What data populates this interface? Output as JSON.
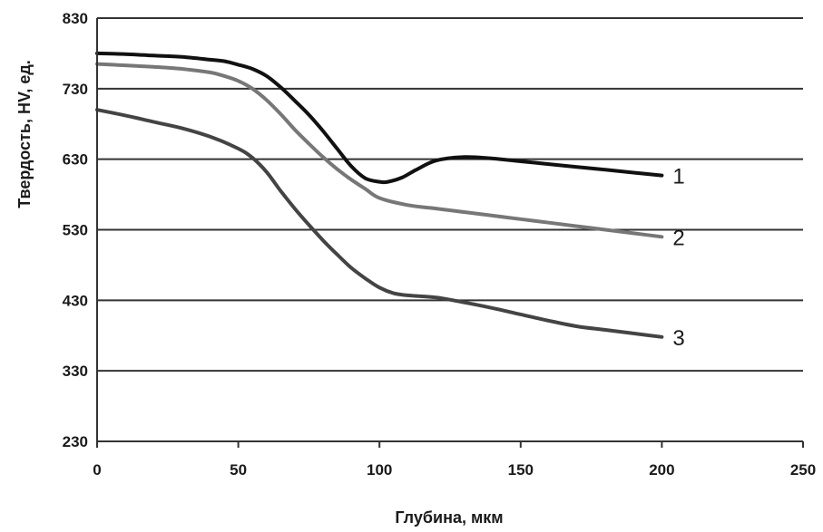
{
  "chart_data": {
    "type": "line",
    "xlabel": "Глубина, мкм",
    "ylabel": "Твердость, HV, ед.",
    "xlim": [
      0,
      250
    ],
    "ylim": [
      230,
      830
    ],
    "xticks": [
      "0",
      "50",
      "100",
      "150",
      "200",
      "250"
    ],
    "yticks": [
      "230",
      "330",
      "430",
      "530",
      "630",
      "730",
      "830"
    ],
    "grid": "horizontal",
    "series": [
      {
        "name": "1",
        "color": "#111111",
        "x": [
          0,
          10,
          20,
          30,
          40,
          45,
          50,
          55,
          60,
          65,
          70,
          75,
          80,
          85,
          90,
          95,
          100,
          103,
          108,
          113,
          120,
          130,
          140,
          150,
          160,
          170,
          180,
          190,
          200
        ],
        "y": [
          780,
          779,
          777,
          775,
          771,
          769,
          764,
          758,
          748,
          732,
          713,
          693,
          670,
          645,
          620,
          603,
          598,
          598,
          604,
          615,
          628,
          633,
          631,
          627,
          623,
          619,
          615,
          611,
          607
        ]
      },
      {
        "name": "2",
        "color": "#777777",
        "x": [
          0,
          10,
          20,
          30,
          40,
          45,
          50,
          55,
          60,
          65,
          70,
          75,
          80,
          85,
          90,
          95,
          100,
          110,
          120,
          130,
          140,
          150,
          160,
          170,
          180,
          190,
          200
        ],
        "y": [
          765,
          763,
          761,
          758,
          753,
          748,
          741,
          730,
          714,
          694,
          672,
          652,
          633,
          616,
          601,
          588,
          575,
          565,
          560,
          555,
          550,
          545,
          540,
          535,
          530,
          525,
          520
        ]
      },
      {
        "name": "3",
        "color": "#444444",
        "x": [
          0,
          10,
          20,
          30,
          40,
          50,
          55,
          60,
          65,
          70,
          75,
          80,
          85,
          90,
          95,
          100,
          105,
          110,
          120,
          130,
          140,
          150,
          160,
          170,
          180,
          190,
          200
        ],
        "y": [
          700,
          692,
          683,
          674,
          662,
          645,
          632,
          612,
          585,
          560,
          537,
          515,
          495,
          476,
          461,
          448,
          440,
          437,
          434,
          427,
          419,
          410,
          401,
          393,
          388,
          383,
          378
        ]
      }
    ]
  }
}
